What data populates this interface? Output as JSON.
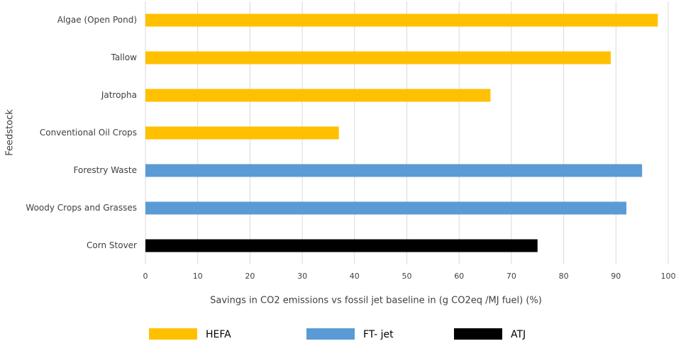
{
  "chart_data": {
    "type": "bar",
    "orientation": "horizontal",
    "categories": [
      "Algae (Open Pond)",
      "Tallow",
      "Jatropha",
      "Conventional Oil Crops",
      "Forestry Waste",
      "Woody Crops and Grasses",
      "Corn Stover"
    ],
    "series": [
      {
        "name": "HEFA",
        "color": "#FFC000",
        "values": [
          98,
          89,
          66,
          37,
          null,
          null,
          null
        ]
      },
      {
        "name": "FT- jet",
        "color": "#5B9BD5",
        "values": [
          null,
          null,
          null,
          null,
          95,
          92,
          null
        ]
      },
      {
        "name": "ATJ",
        "color": "#000000",
        "values": [
          null,
          null,
          null,
          null,
          null,
          null,
          75
        ]
      }
    ],
    "xlabel": "Savings in CO2 emissions vs fossil jet baseline in (g CO2eq /MJ fuel) (%)",
    "ylabel": "Feedstock",
    "xlim": [
      0,
      100
    ],
    "xticks": [
      0,
      10,
      20,
      30,
      40,
      50,
      60,
      70,
      80,
      90,
      100
    ],
    "grid": true,
    "legend": "bottom"
  }
}
